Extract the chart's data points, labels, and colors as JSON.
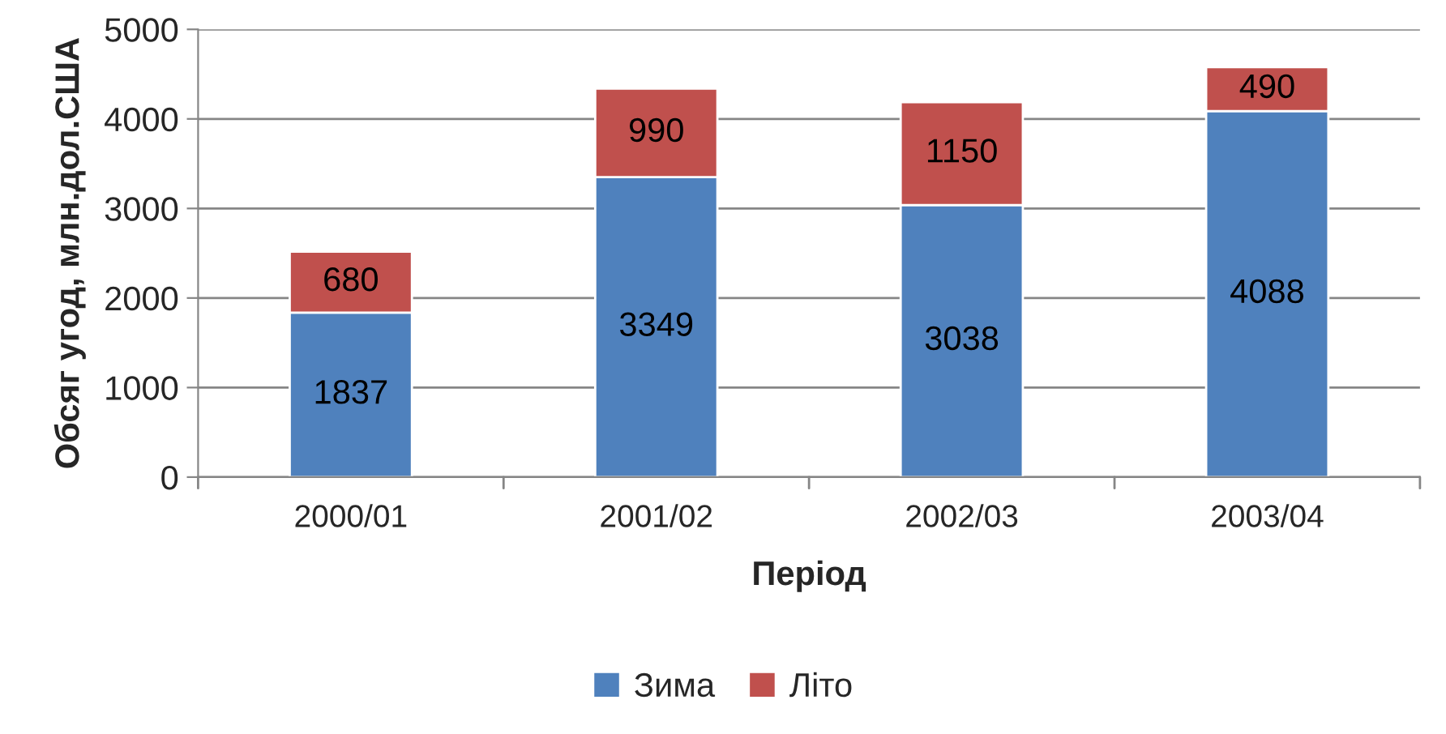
{
  "chart_data": {
    "type": "bar",
    "stacked": true,
    "xlabel": "Період",
    "ylabel": "Обсяг угод, млн.дол.США",
    "categories": [
      "2000/01",
      "2001/02",
      "2002/03",
      "2003/04"
    ],
    "series": [
      {
        "name": "Зима",
        "color": "#4f81bd",
        "values": [
          1837,
          3349,
          3038,
          4088
        ]
      },
      {
        "name": "Літо",
        "color": "#c0504d",
        "values": [
          680,
          990,
          1150,
          490
        ]
      }
    ],
    "ylim": [
      0,
      5000
    ],
    "yticks": [
      0,
      1000,
      2000,
      3000,
      4000,
      5000
    ],
    "grid": "y",
    "legend": "bottom",
    "data_labels": true
  }
}
